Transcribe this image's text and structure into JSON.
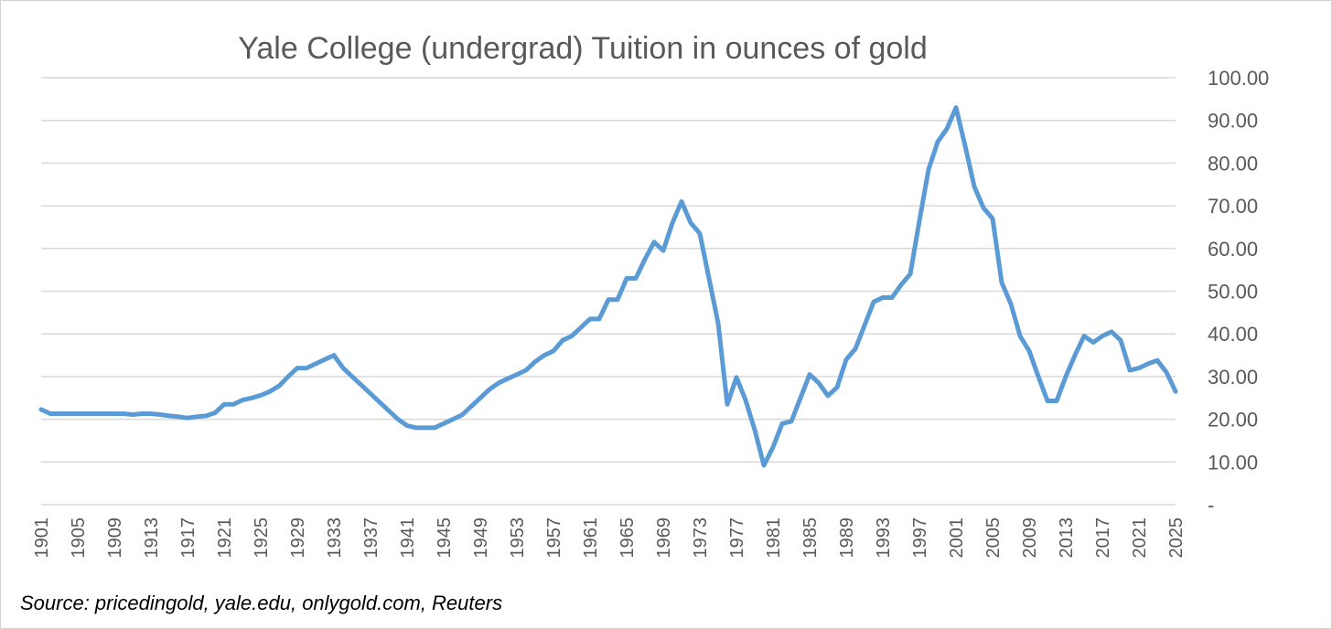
{
  "chart_data": {
    "type": "line",
    "title": "Yale College (undergrad) Tuition in ounces of gold",
    "source": "Source: pricedingold, yale.edu, onlygold.com, Reuters",
    "xlabel": "",
    "ylabel": "",
    "xlim": [
      1901,
      2025
    ],
    "ylim": [
      0,
      100
    ],
    "grid": true,
    "legend": "none",
    "line_color": "#5b9bd5",
    "y_ticks": [
      "-",
      "10.00",
      "20.00",
      "30.00",
      "40.00",
      "50.00",
      "60.00",
      "70.00",
      "80.00",
      "90.00",
      "100.00"
    ],
    "x_ticks": [
      "1901",
      "1905",
      "1909",
      "1913",
      "1917",
      "1921",
      "1925",
      "1929",
      "1933",
      "1937",
      "1941",
      "1945",
      "1949",
      "1953",
      "1957",
      "1961",
      "1965",
      "1969",
      "1973",
      "1977",
      "1981",
      "1985",
      "1989",
      "1993",
      "1997",
      "2001",
      "2005",
      "2009",
      "2013",
      "2017",
      "2021",
      "2025"
    ],
    "series": [
      {
        "x": [
          1901,
          1902,
          1903,
          1904,
          1905,
          1906,
          1907,
          1908,
          1909,
          1910,
          1911,
          1912,
          1913,
          1914,
          1915,
          1916,
          1917,
          1918,
          1919,
          1920,
          1921,
          1922,
          1923,
          1924,
          1925,
          1926,
          1927,
          1928,
          1929,
          1930,
          1931,
          1932,
          1933,
          1934,
          1935,
          1936,
          1937,
          1938,
          1939,
          1940,
          1941,
          1942,
          1943,
          1944,
          1945,
          1946,
          1947,
          1948,
          1949,
          1950,
          1951,
          1952,
          1953,
          1954,
          1955,
          1956,
          1957,
          1958,
          1959,
          1960,
          1961,
          1962,
          1963,
          1964,
          1965,
          1966,
          1967,
          1968,
          1969,
          1970,
          1971,
          1972,
          1973,
          1974,
          1975,
          1976,
          1977,
          1978,
          1979,
          1980,
          1981,
          1982,
          1983,
          1984,
          1985,
          1986,
          1987,
          1988,
          1989,
          1990,
          1991,
          1992,
          1993,
          1994,
          1995,
          1996,
          1997,
          1998,
          1999,
          2000,
          2001,
          2002,
          2003,
          2004,
          2005,
          2006,
          2007,
          2008,
          2009,
          2010,
          2011,
          2012,
          2013,
          2014,
          2015,
          2016,
          2017,
          2018,
          2019,
          2020,
          2021,
          2022,
          2023,
          2024,
          2025
        ],
        "values": [
          22.3,
          21.3,
          21.3,
          21.3,
          21.3,
          21.3,
          21.3,
          21.3,
          21.3,
          21.3,
          21.1,
          21.3,
          21.3,
          21.1,
          20.8,
          20.6,
          20.3,
          20.6,
          20.8,
          21.5,
          23.5,
          23.5,
          24.5,
          25.0,
          25.6,
          26.5,
          27.8,
          30.0,
          32.0,
          32.0,
          33.0,
          34.0,
          35.0,
          32.0,
          30.0,
          28.0,
          26.0,
          24.0,
          22.0,
          20.0,
          18.5,
          18.0,
          18.0,
          18.0,
          19.0,
          20.0,
          21.0,
          23.0,
          25.0,
          27.0,
          28.5,
          29.5,
          30.5,
          31.5,
          33.5,
          35.0,
          36.0,
          38.5,
          39.5,
          41.5,
          43.5,
          43.5,
          48.0,
          48.0,
          53.0,
          53.0,
          57.5,
          61.5,
          59.5,
          66.0,
          71.0,
          66.0,
          63.5,
          53.0,
          42.5,
          23.5,
          29.8,
          24.5,
          17.5,
          9.2,
          13.5,
          19.0,
          19.5,
          25.0,
          30.5,
          28.5,
          25.5,
          27.5,
          34.0,
          36.5,
          42.0,
          47.5,
          48.5,
          48.5,
          51.5,
          54.0,
          66.5,
          78.5,
          85.0,
          88.0,
          93.0,
          84.0,
          74.5,
          69.5,
          67.0,
          52.0,
          47.0,
          39.5,
          36.0,
          30.0,
          24.3,
          24.3,
          30.0,
          35.0,
          39.5,
          38.0,
          39.5,
          40.5,
          38.5,
          31.5,
          32.0,
          33.0,
          33.8,
          31.0,
          26.5
        ]
      }
    ]
  }
}
